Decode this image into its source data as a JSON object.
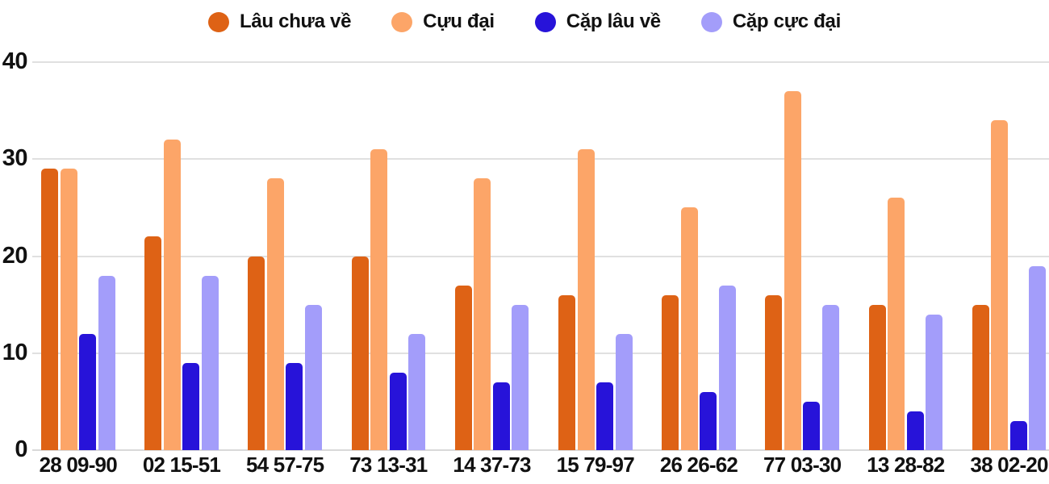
{
  "chart_data": {
    "type": "bar",
    "title": "",
    "categories": [
      "28 09-90",
      "02 15-51",
      "54 57-75",
      "73 13-31",
      "14 37-73",
      "15 79-97",
      "26 26-62",
      "77 03-30",
      "13 28-82",
      "38 02-20"
    ],
    "series": [
      {
        "name": "Lâu chưa về",
        "color": "#de6215",
        "values": [
          29,
          22,
          20,
          20,
          17,
          16,
          16,
          16,
          15,
          15
        ]
      },
      {
        "name": "Cựu đại",
        "color": "#fca568",
        "values": [
          29,
          32,
          28,
          31,
          28,
          31,
          25,
          37,
          26,
          34
        ]
      },
      {
        "name": "Cặp lâu về",
        "color": "#2713d9",
        "values": [
          12,
          9,
          9,
          8,
          7,
          7,
          6,
          5,
          4,
          3
        ]
      },
      {
        "name": "Cặp cực đại",
        "color": "#a39dfa",
        "values": [
          18,
          18,
          15,
          12,
          15,
          12,
          17,
          15,
          14,
          19
        ]
      }
    ],
    "yticks": [
      0,
      10,
      20,
      30,
      40
    ],
    "ylim": [
      0,
      40
    ],
    "grid": true,
    "legend_position": "top-center"
  },
  "styles": {
    "background": "#ffffff",
    "grid_color": "#e0e0e0",
    "baseline_color": "#d9d9d9",
    "axis_text_color": "#111111"
  }
}
